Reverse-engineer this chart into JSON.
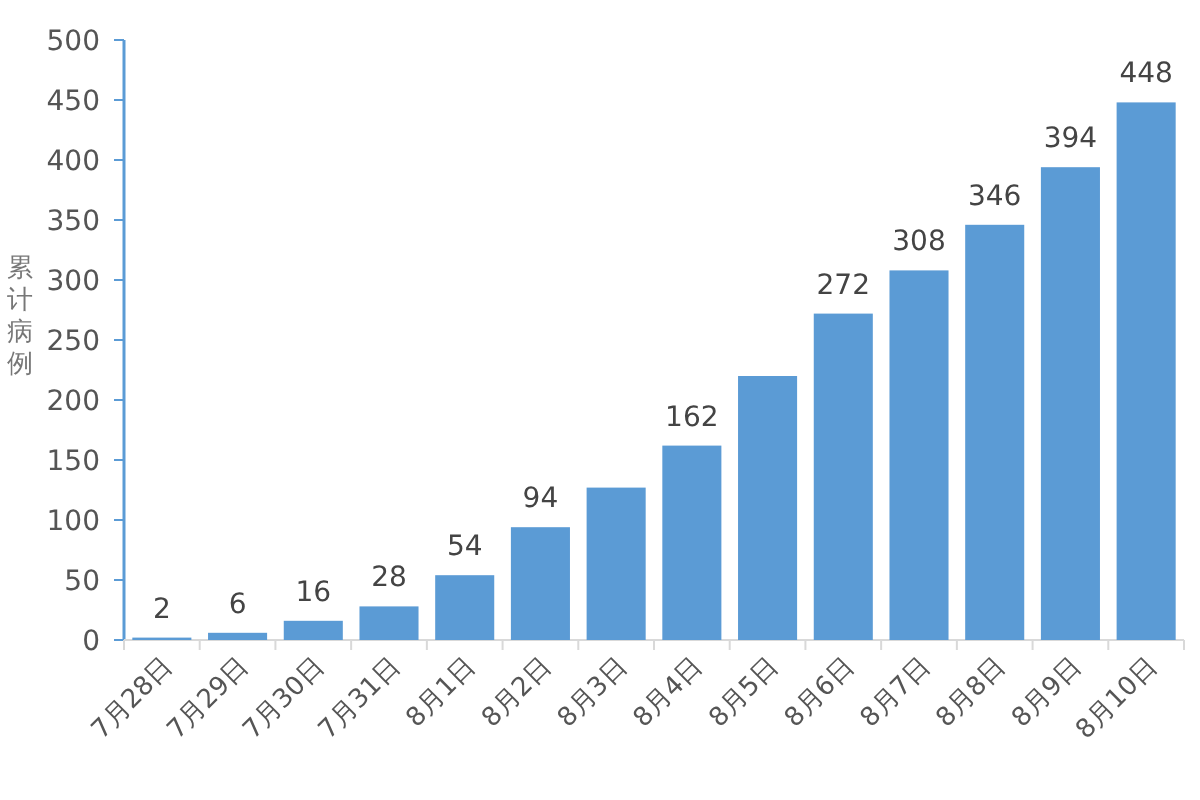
{
  "chart_data": {
    "type": "bar",
    "ylabel": "累计病例",
    "categories": [
      "7月28日",
      "7月29日",
      "7月30日",
      "7月31日",
      "8月1日",
      "8月2日",
      "8月3日",
      "8月4日",
      "8月5日",
      "8月6日",
      "8月7日",
      "8月8日",
      "8月9日",
      "8月10日"
    ],
    "values": [
      2,
      6,
      16,
      28,
      54,
      94,
      127,
      162,
      220,
      272,
      308,
      346,
      394,
      448
    ],
    "value_labels": [
      "2",
      "6",
      "16",
      "28",
      "54",
      "94",
      null,
      "162",
      null,
      "272",
      "308",
      "346",
      "394",
      "448"
    ],
    "color": "#5b9bd5",
    "ylim": [
      0,
      500
    ],
    "yticks": [
      0,
      50,
      100,
      150,
      200,
      250,
      300,
      350,
      400,
      450,
      500
    ],
    "grid": false
  }
}
